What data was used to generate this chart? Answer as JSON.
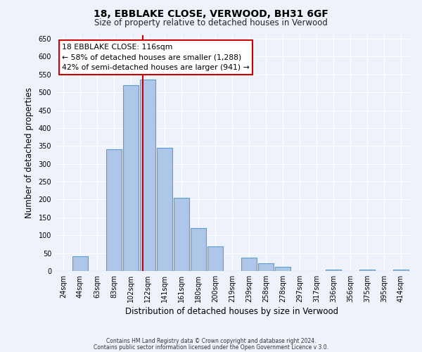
{
  "title1": "18, EBBLAKE CLOSE, VERWOOD, BH31 6GF",
  "title2": "Size of property relative to detached houses in Verwood",
  "xlabel": "Distribution of detached houses by size in Verwood",
  "ylabel": "Number of detached properties",
  "bar_labels": [
    "24sqm",
    "44sqm",
    "63sqm",
    "83sqm",
    "102sqm",
    "122sqm",
    "141sqm",
    "161sqm",
    "180sqm",
    "200sqm",
    "219sqm",
    "239sqm",
    "258sqm",
    "278sqm",
    "297sqm",
    "317sqm",
    "336sqm",
    "356sqm",
    "375sqm",
    "395sqm",
    "414sqm"
  ],
  "bar_values": [
    0,
    42,
    0,
    340,
    520,
    535,
    345,
    205,
    120,
    68,
    0,
    37,
    22,
    12,
    0,
    0,
    3,
    0,
    3,
    0,
    3
  ],
  "bar_color": "#aec6e8",
  "bar_edge_color": "#5a9fd4",
  "vline_color": "#cc0000",
  "annotation_line1": "18 EBBLAKE CLOSE: 116sqm",
  "annotation_line2": "← 58% of detached houses are smaller (1,288)",
  "annotation_line3": "42% of semi-detached houses are larger (941) →",
  "annotation_box_color": "#ffffff",
  "annotation_box_edge": "#cc0000",
  "ylim": [
    0,
    660
  ],
  "yticks": [
    0,
    50,
    100,
    150,
    200,
    250,
    300,
    350,
    400,
    450,
    500,
    550,
    600,
    650
  ],
  "footer1": "Contains HM Land Registry data © Crown copyright and database right 2024.",
  "footer2": "Contains public sector information licensed under the Open Government Licence v 3.0.",
  "bg_color": "#eef2fb",
  "grid_color": "#ffffff"
}
